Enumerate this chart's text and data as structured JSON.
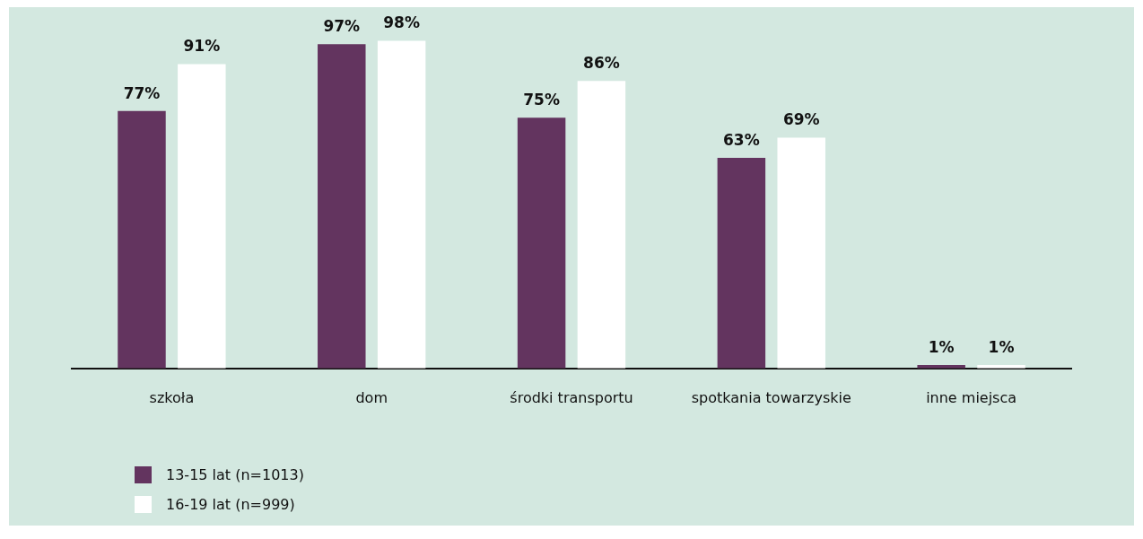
{
  "chart_data": {
    "type": "bar",
    "categories": [
      "szkoła",
      "dom",
      "środki transportu",
      "spotkania towarzyskie",
      "inne miejsca"
    ],
    "series": [
      {
        "name": "13-15 lat (n=1013)",
        "color": "#63345f",
        "values": [
          77,
          97,
          75,
          63,
          1
        ],
        "value_labels": [
          "77%",
          "97%",
          "75%",
          "63%",
          "1%"
        ]
      },
      {
        "name": "16-19 lat (n=999)",
        "color": "#ffffff",
        "values": [
          91,
          98,
          86,
          69,
          1
        ],
        "value_labels": [
          "91%",
          "98%",
          "86%",
          "69%",
          "1%"
        ]
      }
    ],
    "legend": "bottom left"
  }
}
